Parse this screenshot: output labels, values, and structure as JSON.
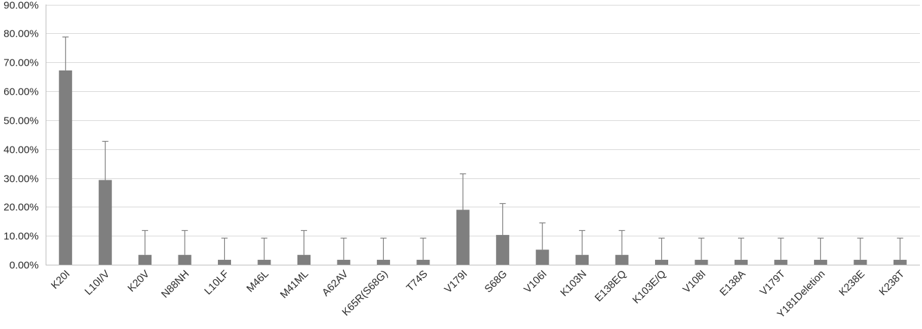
{
  "chart_data": {
    "type": "bar",
    "title": "",
    "xlabel": "",
    "ylabel": "",
    "ylim": [
      0,
      0.9
    ],
    "y_ticks": [
      "0.00%",
      "10.00%",
      "20.00%",
      "30.00%",
      "40.00%",
      "50.00%",
      "60.00%",
      "70.00%",
      "80.00%",
      "90.00%"
    ],
    "grid": true,
    "legend": "none",
    "bar_color": "#7f7f7f",
    "error_color": "#7f7f7f",
    "grid_color": "#d9d9d9",
    "axis_color": "#bfbfbf",
    "categories": [
      "K20I",
      "L10I/V",
      "K20V",
      "N88NH",
      "L10LF",
      "M46L",
      "M41ML",
      "A62AV",
      "K65R(S68G)",
      "T74S",
      "V179I",
      "S68G",
      "V106I",
      "K103N",
      "E138EQ",
      "K103E/Q",
      "V108I",
      "E138A",
      "V179T",
      "Y181Deletion",
      "K238E",
      "K238T"
    ],
    "values": [
      0.672,
      0.293,
      0.034,
      0.034,
      0.017,
      0.017,
      0.034,
      0.017,
      0.017,
      0.017,
      0.19,
      0.103,
      0.052,
      0.034,
      0.034,
      0.017,
      0.017,
      0.017,
      0.017,
      0.017,
      0.017,
      0.017
    ],
    "errors_upper": [
      0.79,
      0.427,
      0.12,
      0.12,
      0.093,
      0.093,
      0.12,
      0.093,
      0.093,
      0.093,
      0.315,
      0.212,
      0.145,
      0.12,
      0.12,
      0.093,
      0.093,
      0.093,
      0.093,
      0.093,
      0.093,
      0.093
    ]
  }
}
